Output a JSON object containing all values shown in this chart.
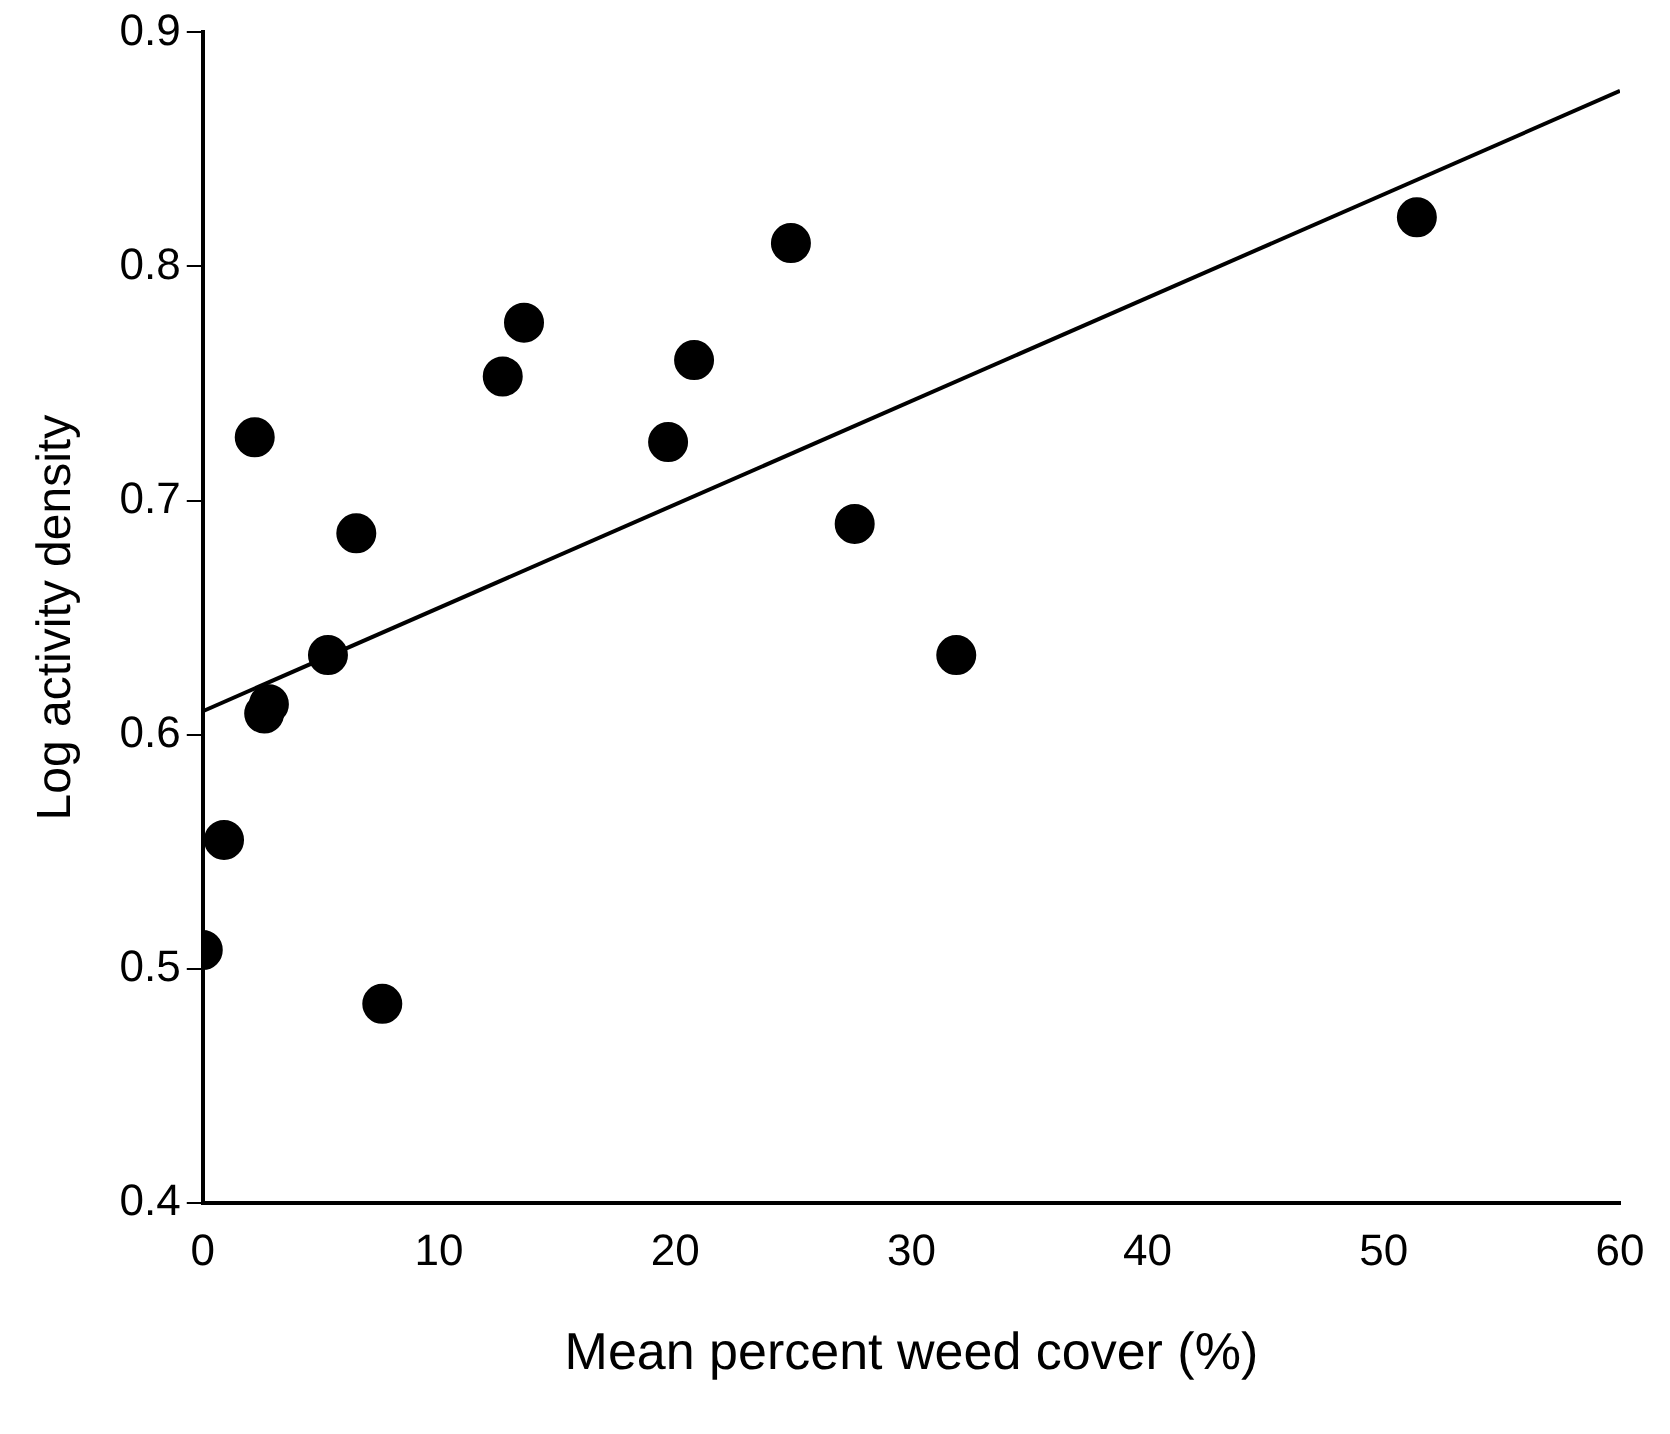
{
  "chart_data": {
    "type": "scatter",
    "xlabel": "Mean percent weed cover (%)",
    "ylabel": "Log activity density",
    "xlim": [
      0,
      60
    ],
    "xticks": [
      0,
      10,
      20,
      30,
      40,
      50,
      60
    ],
    "ylim": [
      0.4,
      0.9
    ],
    "yticks": [
      {
        "value": 0.4,
        "label": "0.4"
      },
      {
        "value": 0.5,
        "label": "0.5"
      },
      {
        "value": 0.6,
        "label": "0.6"
      },
      {
        "value": 0.7,
        "label": "0.7"
      },
      {
        "value": 0.8,
        "label": "0.8"
      },
      {
        "value": 0.9,
        "label": "0.9"
      }
    ],
    "grid": false,
    "legend": false,
    "marker": "circle",
    "series": [
      {
        "color": "#000000",
        "x": [
          0,
          0.9,
          2.2,
          2.6,
          2.8,
          5.3,
          6.5,
          7.6,
          12.7,
          13.6,
          19.7,
          20.8,
          24.9,
          27.6,
          31.9,
          51.4
        ],
        "values": [
          0.508,
          0.555,
          0.727,
          0.609,
          0.613,
          0.634,
          0.686,
          0.485,
          0.753,
          0.776,
          0.725,
          0.76,
          0.81,
          0.69,
          0.634,
          0.821
        ]
      },
      {
        "type": "line",
        "color": "#000000",
        "x": [
          0,
          60
        ],
        "values": [
          0.61,
          0.875
        ],
        "marker": "none",
        "line_style": "solid"
      }
    ]
  }
}
